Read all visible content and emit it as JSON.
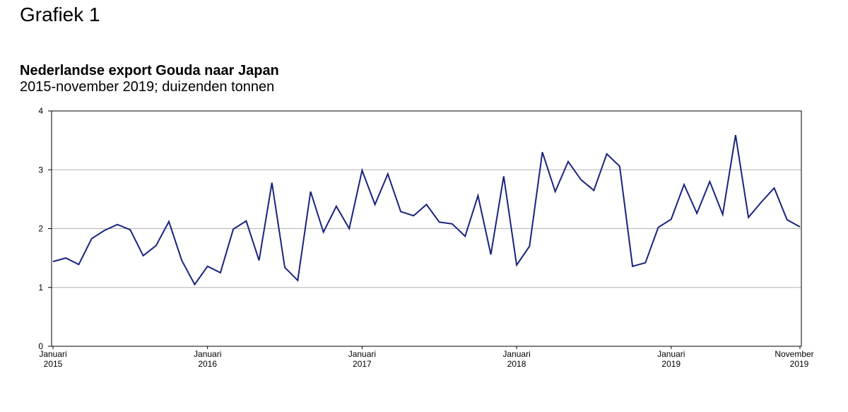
{
  "page": {
    "heading": "Grafiek 1"
  },
  "chart_data": {
    "type": "line",
    "title": "Nederlandse export Gouda naar Japan",
    "subtitle": "2015-november 2019; duizenden tonnen",
    "xlabel": "",
    "ylabel": "",
    "ylim": [
      0,
      4
    ],
    "yticks": [
      0,
      1,
      2,
      3,
      4
    ],
    "grid": true,
    "legend": "none",
    "line_color": "#1a237e",
    "x_tick_labels": [
      {
        "index": 0,
        "line1": "Januari",
        "line2": "2015"
      },
      {
        "index": 12,
        "line1": "Januari",
        "line2": "2016"
      },
      {
        "index": 24,
        "line1": "Januari",
        "line2": "2017"
      },
      {
        "index": 36,
        "line1": "Januari",
        "line2": "2018"
      },
      {
        "index": 48,
        "line1": "Januari",
        "line2": "2019"
      },
      {
        "index": 58,
        "line1": "November",
        "line2": "2019"
      }
    ],
    "series": [
      {
        "values": [
          1.44,
          1.5,
          1.39,
          1.83,
          1.97,
          2.07,
          1.98,
          1.54,
          1.71,
          2.12,
          1.46,
          1.05,
          1.36,
          1.25,
          1.99,
          2.13,
          1.46,
          2.78,
          1.34,
          1.12,
          2.63,
          1.94,
          2.38,
          2.0,
          2.99,
          2.41,
          2.93,
          2.29,
          2.22,
          2.41,
          2.11,
          2.08,
          1.87,
          2.56,
          1.56,
          2.89,
          1.38,
          1.7,
          3.3,
          2.63,
          3.14,
          2.83,
          2.65,
          3.27,
          3.06,
          1.36,
          1.42,
          2.02,
          2.16,
          2.75,
          2.26,
          2.8,
          2.24,
          3.59,
          2.19,
          2.45,
          2.69,
          2.15,
          2.03
        ]
      }
    ]
  }
}
